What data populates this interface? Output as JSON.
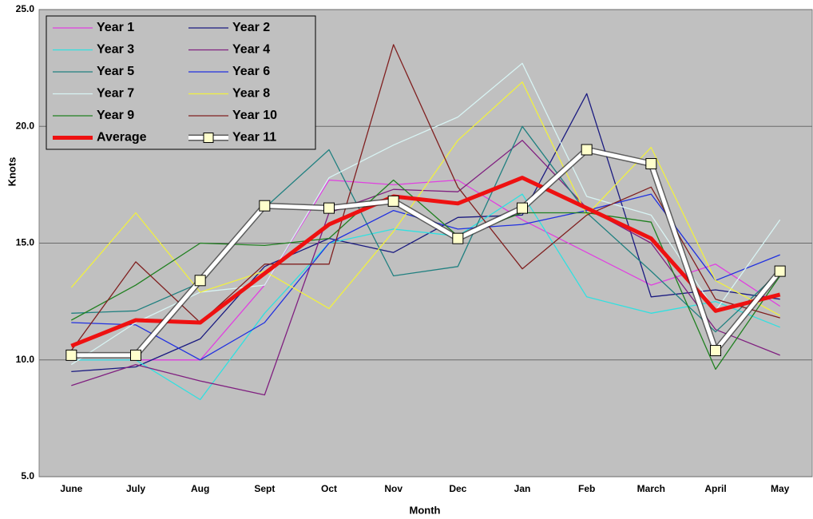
{
  "chart_data": {
    "type": "line",
    "x_label": "Month",
    "y_label": "Knots",
    "categories": [
      "June",
      "July",
      "Aug",
      "Sept",
      "Oct",
      "Nov",
      "Dec",
      "Jan",
      "Feb",
      "March",
      "April",
      "May"
    ],
    "ylim": [
      5,
      25
    ],
    "yticks": [
      {
        "value": 5,
        "label": "5.0"
      },
      {
        "value": 10,
        "label": "10.0"
      },
      {
        "value": 15,
        "label": "15.0"
      },
      {
        "value": 20,
        "label": "20.0"
      },
      {
        "value": 25,
        "label": "25.0"
      }
    ],
    "grid": true,
    "legend": "upper left",
    "series": [
      {
        "name": "Year 1",
        "color": "#e040e0",
        "width": 1.3,
        "values": [
          10.0,
          10.0,
          10.0,
          13.2,
          17.7,
          17.5,
          17.7,
          16.0,
          14.6,
          13.2,
          14.1,
          12.3
        ]
      },
      {
        "name": "Year 2",
        "color": "#1a1a80",
        "width": 1.3,
        "values": [
          9.5,
          9.7,
          10.9,
          14.0,
          15.2,
          14.6,
          16.1,
          16.2,
          21.4,
          12.7,
          13.0,
          12.6
        ]
      },
      {
        "name": "Year 3",
        "color": "#30e0e0",
        "width": 1.3,
        "values": [
          10.0,
          10.0,
          8.3,
          12.0,
          15.0,
          15.6,
          15.3,
          17.1,
          12.7,
          12.0,
          12.5,
          11.4
        ]
      },
      {
        "name": "Year 4",
        "color": "#802080",
        "width": 1.3,
        "values": [
          8.9,
          9.8,
          9.1,
          8.5,
          16.3,
          17.3,
          17.2,
          19.4,
          16.5,
          15.0,
          11.3,
          10.2
        ]
      },
      {
        "name": "Year 5",
        "color": "#208080",
        "width": 1.3,
        "values": [
          12.0,
          12.1,
          13.3,
          16.5,
          19.0,
          13.6,
          14.0,
          20.0,
          16.3,
          13.8,
          11.2,
          13.8
        ]
      },
      {
        "name": "Year 6",
        "color": "#2030e0",
        "width": 1.3,
        "values": [
          11.6,
          11.5,
          10.0,
          11.6,
          15.0,
          16.4,
          15.6,
          15.8,
          16.4,
          17.1,
          13.4,
          14.5
        ]
      },
      {
        "name": "Year 7",
        "color": "#d8f4f4",
        "width": 1.3,
        "values": [
          9.8,
          11.6,
          12.9,
          13.2,
          17.8,
          19.2,
          20.4,
          22.7,
          17.0,
          16.2,
          12.1,
          16.0
        ]
      },
      {
        "name": "Year 8",
        "color": "#f0f040",
        "width": 1.3,
        "values": [
          13.1,
          16.3,
          12.9,
          13.8,
          12.2,
          15.5,
          19.4,
          21.9,
          16.2,
          19.1,
          13.4,
          11.9
        ]
      },
      {
        "name": "Year 9",
        "color": "#208020",
        "width": 1.3,
        "values": [
          11.7,
          13.2,
          15.0,
          14.9,
          15.2,
          17.7,
          15.3,
          16.3,
          16.3,
          15.9,
          9.6,
          13.6
        ]
      },
      {
        "name": "Year 10",
        "color": "#802020",
        "width": 1.3,
        "values": [
          10.4,
          14.2,
          11.6,
          14.1,
          14.1,
          23.5,
          17.4,
          13.9,
          16.2,
          17.4,
          12.6,
          11.8
        ]
      },
      {
        "name": "Average",
        "color": "#ee1111",
        "width": 5,
        "values": [
          10.6,
          11.7,
          11.6,
          13.7,
          15.8,
          17.0,
          16.7,
          17.8,
          16.5,
          15.2,
          12.1,
          12.8
        ]
      },
      {
        "name": "Year 11",
        "color": "#ffffff",
        "width": 5,
        "marker": "square",
        "marker_color": "#ffffcc",
        "values": [
          10.2,
          10.2,
          13.4,
          16.6,
          16.5,
          16.8,
          15.2,
          16.5,
          19.0,
          18.4,
          10.4,
          13.8
        ]
      }
    ]
  }
}
